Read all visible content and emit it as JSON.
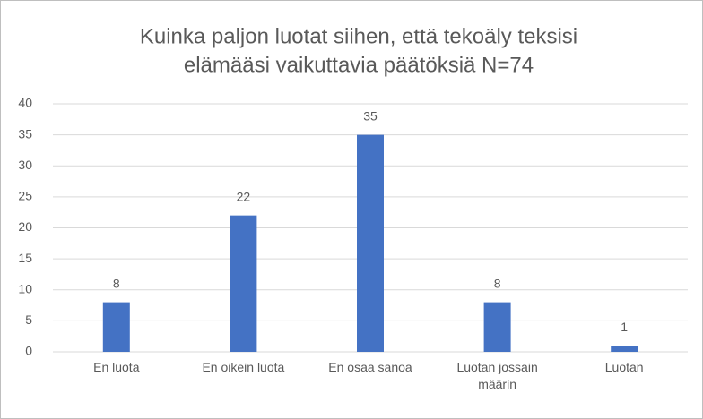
{
  "chart_data": {
    "type": "bar",
    "title": [
      "Kuinka paljon luotat siihen, että tekoäly teksisi",
      "elämääsi vaikuttavia päätöksiä N=74"
    ],
    "categories": [
      "En luota",
      "En oikein luota",
      "En osaa sanoa",
      "Luotan jossain määrin",
      "Luotan"
    ],
    "values": [
      8,
      22,
      35,
      8,
      1
    ],
    "color": "#4472c4",
    "ylim": [
      0,
      40
    ],
    "yticks": [
      0,
      5,
      10,
      15,
      20,
      25,
      30,
      35,
      40
    ],
    "grid": true
  }
}
